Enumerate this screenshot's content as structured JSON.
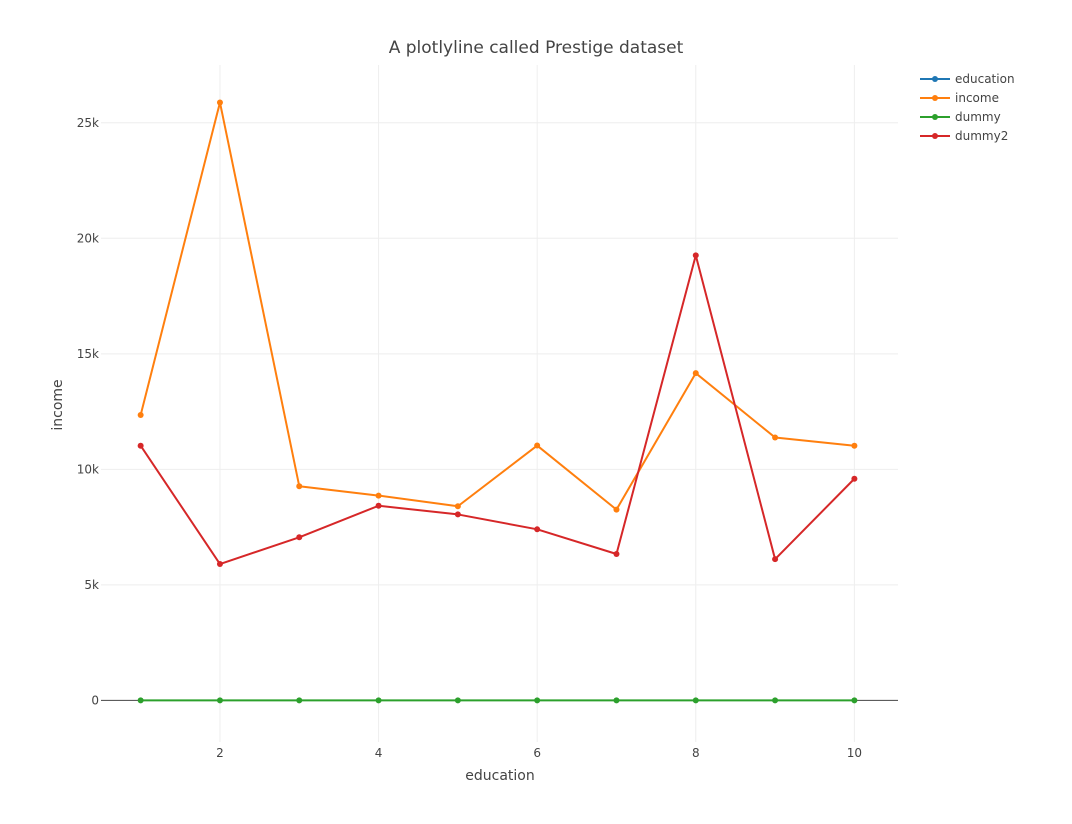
{
  "chart_data": {
    "type": "line",
    "title": "A plotlyline called Prestige dataset",
    "xlabel": "education",
    "ylabel": "income",
    "xlim": [
      0.5,
      10.55
    ],
    "ylim": [
      -1800,
      27500
    ],
    "x_ticks": [
      2,
      4,
      6,
      8,
      10
    ],
    "y_ticks": [
      0,
      5000,
      10000,
      15000,
      20000,
      25000
    ],
    "y_tick_labels": [
      "0",
      "5k",
      "10k",
      "15k",
      "20k",
      "25k"
    ],
    "grid": true,
    "legend_position": "top-right",
    "x": [
      1,
      2,
      3,
      4,
      5,
      6,
      7,
      8,
      9,
      10
    ],
    "series": [
      {
        "name": "education",
        "color": "#1f77b4",
        "values": [
          null,
          null,
          null,
          null,
          null,
          null,
          null,
          null,
          null,
          null
        ]
      },
      {
        "name": "income",
        "color": "#ff7f0e",
        "values": [
          12351,
          25879,
          9271,
          8865,
          8403,
          11030,
          8258,
          14163,
          11377,
          11023
        ]
      },
      {
        "name": "dummy",
        "color": "#2ca02c",
        "values": [
          0,
          0,
          0,
          0,
          0,
          0,
          0,
          0,
          0,
          0
        ]
      },
      {
        "name": "dummy2",
        "color": "#d62728",
        "values": [
          11023,
          5902,
          7059,
          8425,
          8049,
          7405,
          6336,
          19263,
          6112,
          9593
        ]
      }
    ]
  }
}
